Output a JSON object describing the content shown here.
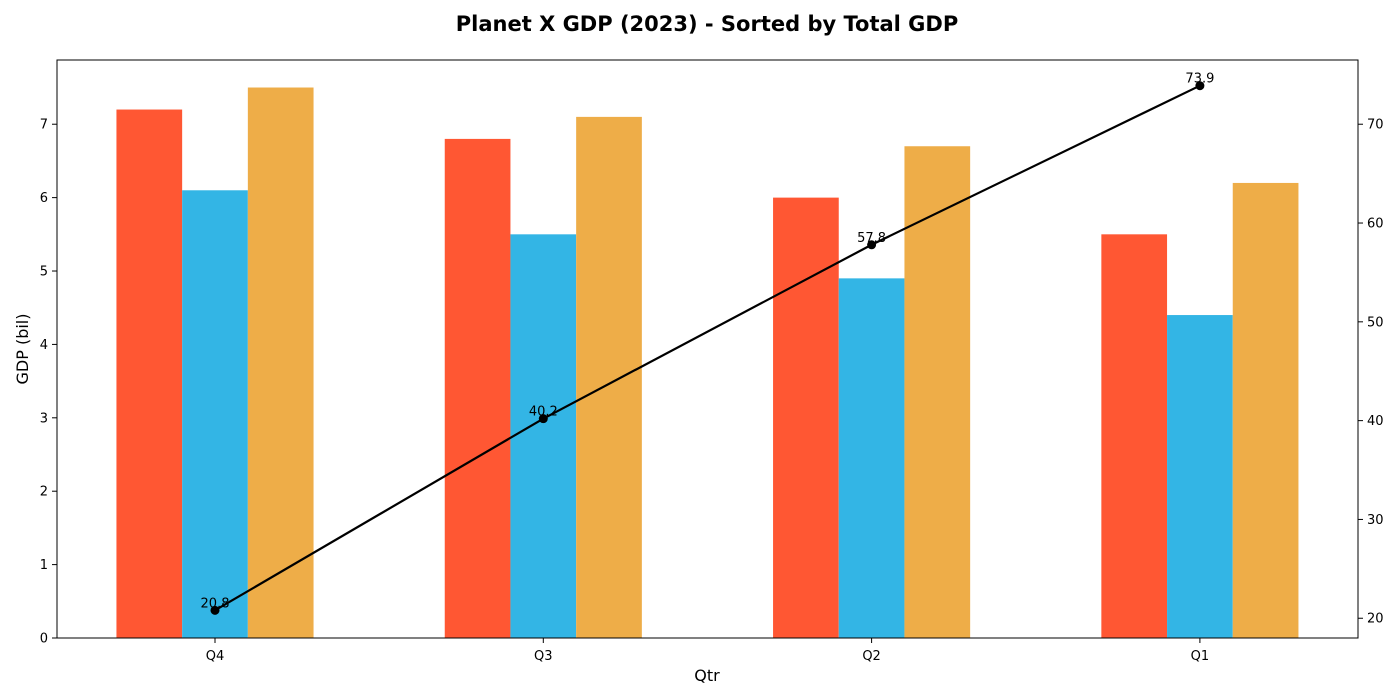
{
  "chart_data": {
    "type": "bar",
    "title": "Planet X GDP (2023) - Sorted by Total GDP",
    "xlabel": "Qtr",
    "ylabel": "GDP (bil)",
    "categories": [
      "Q4",
      "Q3",
      "Q2",
      "Q1"
    ],
    "ylim": [
      0,
      7.875
    ],
    "yticks": [
      0,
      1,
      2,
      3,
      4,
      5,
      6,
      7
    ],
    "series": [
      {
        "color": "#FF5733",
        "values": [
          7.2,
          6.8,
          6.0,
          5.5
        ]
      },
      {
        "color": "#33B5E5",
        "values": [
          6.1,
          5.5,
          4.9,
          4.4
        ]
      },
      {
        "color": "#EEAD48",
        "values": [
          7.5,
          7.1,
          6.7,
          6.2
        ]
      }
    ],
    "secondary_axis": {
      "type": "line",
      "color": "#000000",
      "ylim": [
        18.0,
        76.5
      ],
      "yticks": [
        20,
        30,
        40,
        50,
        60,
        70
      ],
      "values": [
        20.8,
        40.2,
        57.8,
        73.9
      ],
      "labels": [
        "20.8",
        "40.2",
        "57.8",
        "73.9"
      ]
    },
    "grid": false,
    "legend": "none"
  }
}
